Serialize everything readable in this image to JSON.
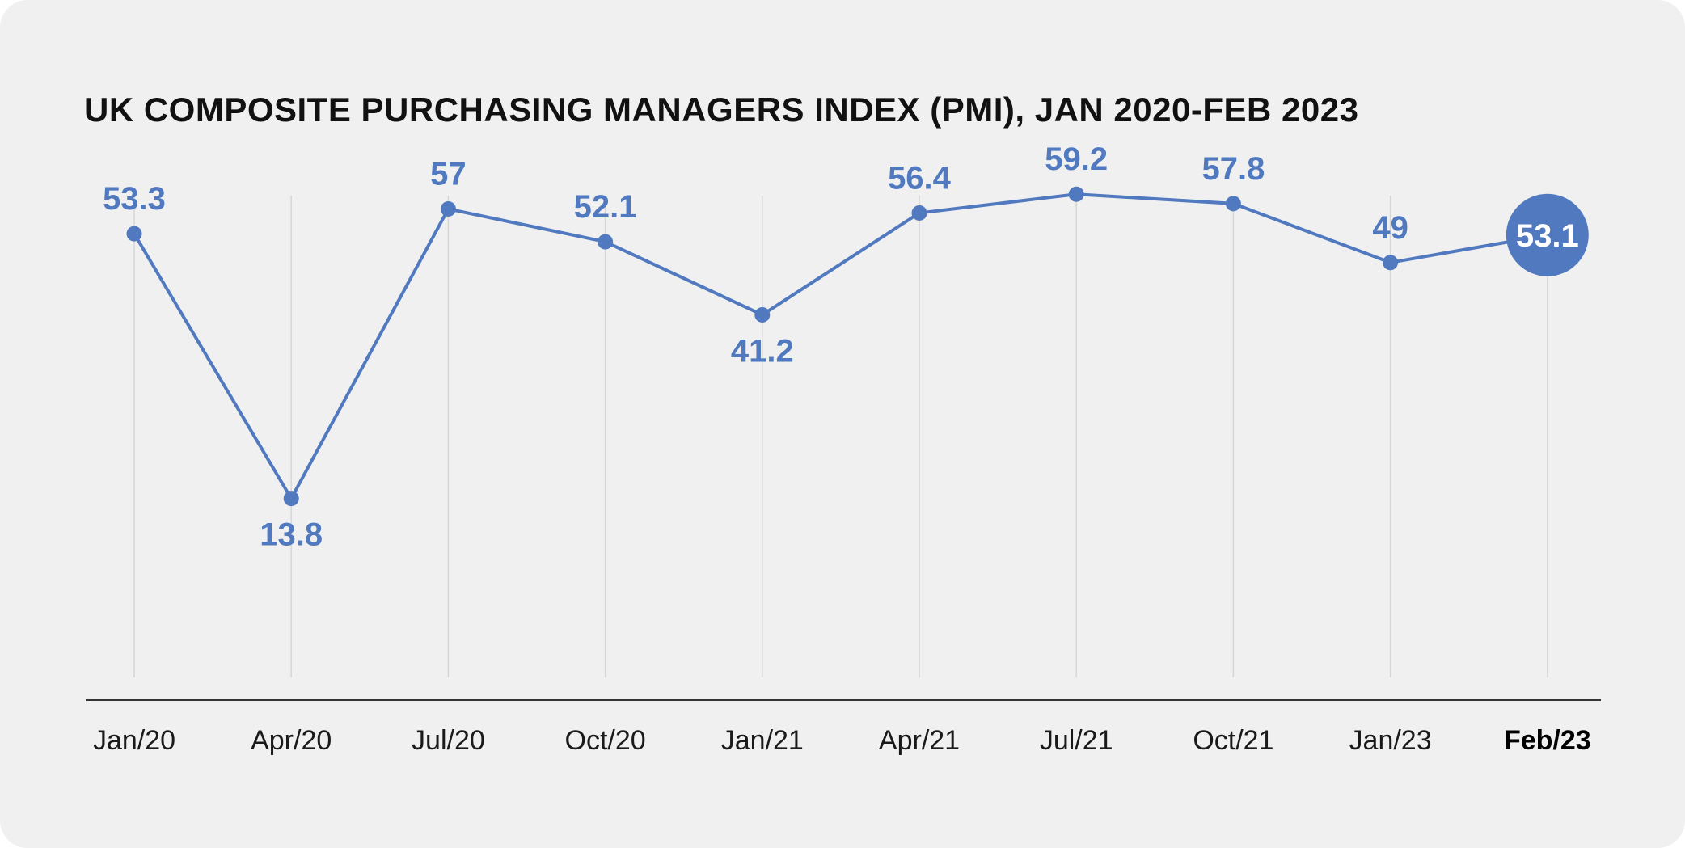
{
  "chart_data": {
    "type": "line",
    "title": "UK COMPOSITE PURCHASING MANAGERS INDEX (PMI), JAN 2020-FEB 2023",
    "categories": [
      "Jan/20",
      "Apr/20",
      "Jul/20",
      "Oct/20",
      "Jan/21",
      "Apr/21",
      "Jul/21",
      "Oct/21",
      "Jan/23",
      "Feb/23"
    ],
    "series": [
      {
        "values": [
          53.3,
          13.8,
          57,
          52.1,
          41.2,
          56.4,
          59.2,
          57.8,
          49,
          53.1
        ]
      }
    ],
    "data_labels": [
      "53.3",
      "13.8",
      "57",
      "52.1",
      "41.2",
      "56.4",
      "59.2",
      "57.8",
      "49",
      "53.1"
    ],
    "label_position": [
      "above",
      "below",
      "above",
      "above",
      "below",
      "above",
      "above",
      "above",
      "above",
      "badge"
    ],
    "highlighted_category": "Feb/23",
    "xlabel": "",
    "ylabel": "",
    "grid": "vertical",
    "colors": {
      "line": "#5079bf",
      "grid": "#d6d6d6",
      "axis": "#333333",
      "background": "#f0f0f0",
      "badge_text": "#ffffff"
    }
  }
}
